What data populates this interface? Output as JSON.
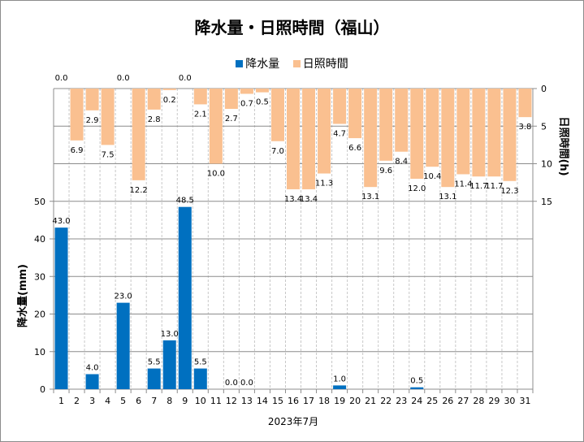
{
  "chart_data": {
    "type": "bar",
    "title": "降水量・日照時間（福山）",
    "xlabel": "2023年7月",
    "categories": [
      "1",
      "2",
      "3",
      "4",
      "5",
      "6",
      "7",
      "8",
      "9",
      "10",
      "11",
      "12",
      "13",
      "14",
      "15",
      "16",
      "17",
      "18",
      "19",
      "20",
      "21",
      "22",
      "23",
      "24",
      "25",
      "26",
      "27",
      "28",
      "29",
      "30",
      "31"
    ],
    "series": [
      {
        "name": "降水量",
        "axis": "left",
        "color": "#0070c0",
        "values": [
          43.0,
          null,
          4.0,
          null,
          23.0,
          null,
          5.5,
          13.0,
          48.5,
          5.5,
          null,
          0.0,
          0.0,
          null,
          null,
          null,
          null,
          null,
          1.0,
          null,
          null,
          null,
          null,
          0.5,
          null,
          null,
          null,
          null,
          null,
          null,
          null
        ]
      },
      {
        "name": "日照時間",
        "axis": "right-reversed",
        "color": "#fac090",
        "values": [
          0.0,
          6.9,
          2.9,
          7.5,
          0.0,
          12.2,
          2.8,
          0.2,
          0.0,
          2.1,
          10.0,
          2.7,
          0.7,
          0.5,
          7.0,
          13.4,
          13.4,
          11.3,
          4.7,
          6.6,
          13.1,
          9.6,
          8.4,
          12.0,
          10.4,
          13.1,
          11.4,
          11.7,
          11.7,
          12.3,
          3.8
        ]
      }
    ],
    "ylabel": "降水量(mm)",
    "ylim": [
      0,
      80
    ],
    "yticks": [
      "0",
      "10",
      "20",
      "30",
      "40",
      "50"
    ],
    "y2label": "日照時間(h)",
    "y2lim": [
      0,
      40
    ],
    "y2ticks": [
      "0",
      "5",
      "10",
      "15"
    ],
    "grid": true,
    "legend": "top-center"
  }
}
